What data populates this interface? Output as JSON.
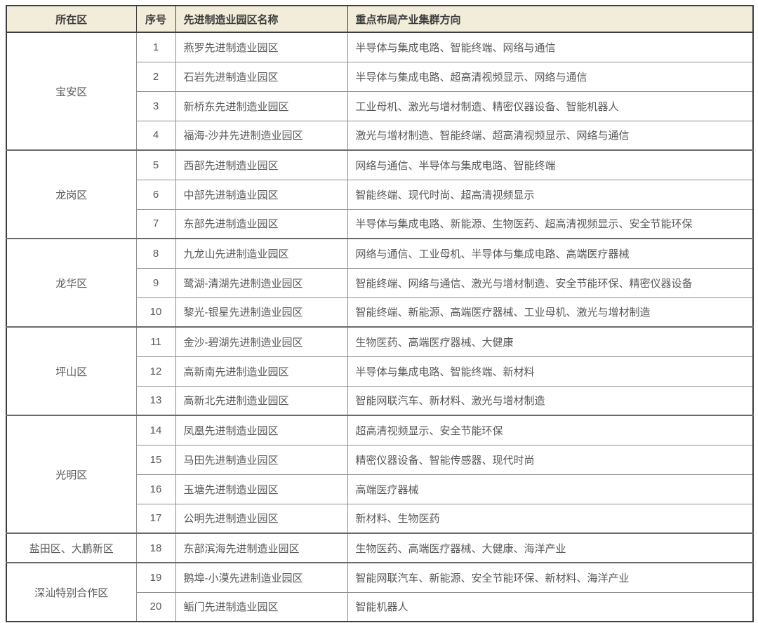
{
  "table": {
    "headers": [
      "所在区",
      "序号",
      "先进制造业园区名称",
      "重点布局产业集群方向"
    ],
    "groups": [
      {
        "district": "宝安区",
        "rows": [
          {
            "no": "1",
            "park": "燕罗先进制造业园区",
            "industries": "半导体与集成电路、智能终端、网络与通信"
          },
          {
            "no": "2",
            "park": "石岩先进制造业园区",
            "industries": "半导体与集成电路、超高清视频显示、网络与通信"
          },
          {
            "no": "3",
            "park": "新桥东先进制造业园区",
            "industries": "工业母机、激光与增材制造、精密仪器设备、智能机器人"
          },
          {
            "no": "4",
            "park": "福海-沙井先进制造业园区",
            "industries": "激光与增材制造、智能终端、超高清视频显示、网络与通信"
          }
        ]
      },
      {
        "district": "龙岗区",
        "rows": [
          {
            "no": "5",
            "park": "西部先进制造业园区",
            "industries": "网络与通信、半导体与集成电路、智能终端"
          },
          {
            "no": "6",
            "park": "中部先进制造业园区",
            "industries": "智能终端、现代时尚、超高清视频显示"
          },
          {
            "no": "7",
            "park": "东部先进制造业园区",
            "industries": "半导体与集成电路、新能源、生物医药、超高清视频显示、安全节能环保"
          }
        ]
      },
      {
        "district": "龙华区",
        "rows": [
          {
            "no": "8",
            "park": "九龙山先进制造业园区",
            "industries": "网络与通信、工业母机、半导体与集成电路、高端医疗器械"
          },
          {
            "no": "9",
            "park": "鹭湖-清湖先进制造业园区",
            "industries": "智能终端、网络与通信、激光与增材制造、安全节能环保、精密仪器设备"
          },
          {
            "no": "10",
            "park": "黎光-银星先进制造业园区",
            "industries": "智能终端、新能源、高端医疗器械、工业母机、激光与增材制造"
          }
        ]
      },
      {
        "district": "坪山区",
        "rows": [
          {
            "no": "11",
            "park": "金沙-碧湖先进制造业园区",
            "industries": "生物医药、高端医疗器械、大健康"
          },
          {
            "no": "12",
            "park": "高新南先进制造业园区",
            "industries": "半导体与集成电路、智能终端、新材料"
          },
          {
            "no": "13",
            "park": "高新北先进制造业园区",
            "industries": "智能网联汽车、新材料、激光与增材制造"
          }
        ]
      },
      {
        "district": "光明区",
        "rows": [
          {
            "no": "14",
            "park": "凤凰先进制造业园区",
            "industries": "超高清视频显示、安全节能环保"
          },
          {
            "no": "15",
            "park": "马田先进制造业园区",
            "industries": "精密仪器设备、智能传感器、现代时尚"
          },
          {
            "no": "16",
            "park": "玉塘先进制造业园区",
            "industries": "高端医疗器械"
          },
          {
            "no": "17",
            "park": "公明先进制造业园区",
            "industries": "新材料、生物医药"
          }
        ]
      },
      {
        "district": "盐田区、大鹏新区",
        "rows": [
          {
            "no": "18",
            "park": "东部滨海先进制造业园区",
            "industries": "生物医药、高端医疗器械、大健康、海洋产业"
          }
        ]
      },
      {
        "district": "深汕特别合作区",
        "rows": [
          {
            "no": "19",
            "park": "鹅埠-小漠先进制造业园区",
            "industries": "智能网联汽车、新能源、安全节能环保、新材料、海洋产业"
          },
          {
            "no": "20",
            "park": "鲘门先进制造业园区",
            "industries": "智能机器人"
          }
        ]
      }
    ],
    "colors": {
      "header_bg": "#f1edda",
      "header_text": "#3c3c3c",
      "body_text": "#595959",
      "border_inner": "#8f8f8f",
      "border_group": "#6a6a6a",
      "border_outer": "#3f3f3f"
    }
  }
}
